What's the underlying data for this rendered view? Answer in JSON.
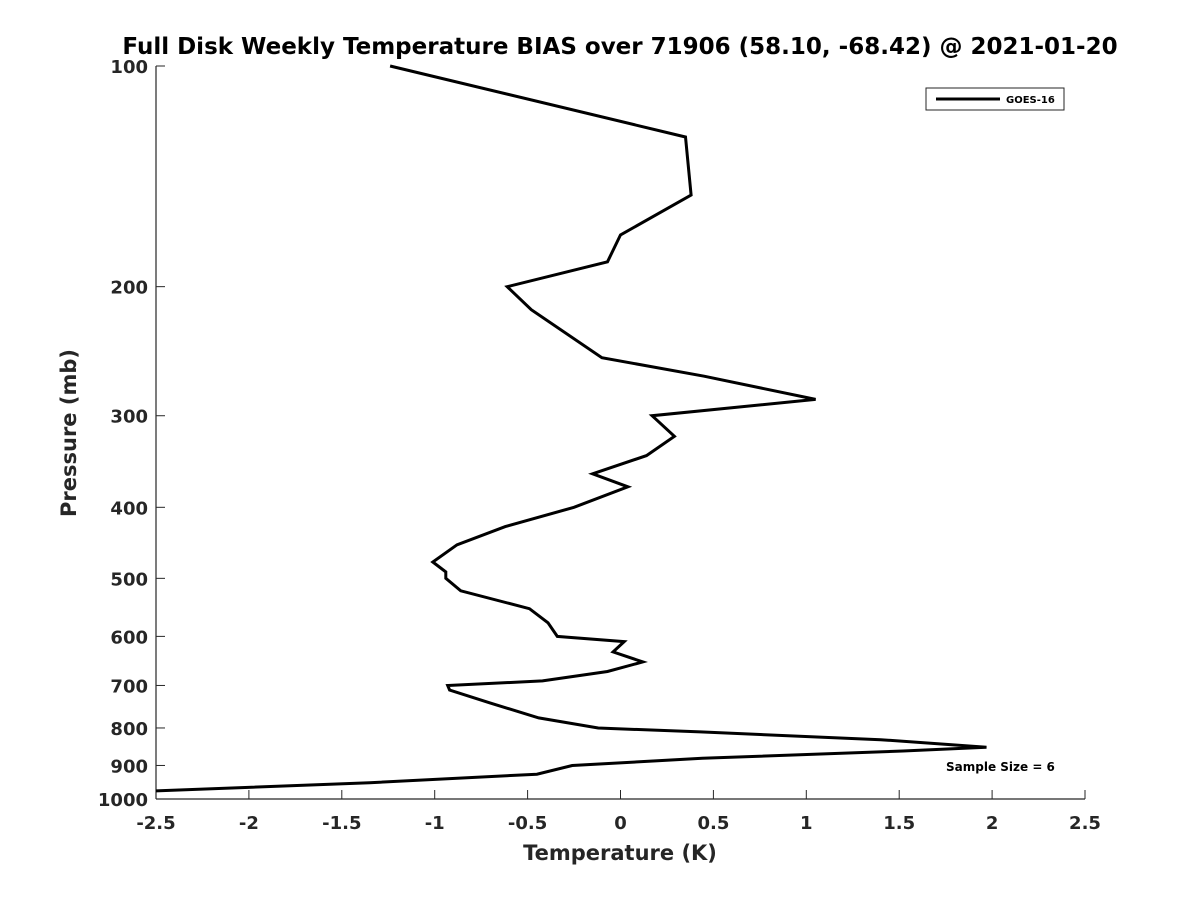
{
  "chart_data": {
    "type": "line",
    "title": "Full Disk Weekly Temperature BIAS over 71906 (58.10, -68.42) @ 2021-01-20",
    "xlabel": "Temperature (K)",
    "ylabel": "Pressure (mb)",
    "xlim": [
      -2.5,
      2.5
    ],
    "ylim": [
      100,
      1000
    ],
    "y_scale": "log",
    "y_reversed": true,
    "x_ticks": [
      "-2.5",
      "-2",
      "-1.5",
      "-1",
      "-0.5",
      "0",
      "0.5",
      "1",
      "1.5",
      "2",
      "2.5"
    ],
    "y_ticks": [
      "100",
      "200",
      "300",
      "400",
      "500",
      "600",
      "700",
      "800",
      "900",
      "1000"
    ],
    "grid": false,
    "legend_position": "top-right",
    "annotation": "Sample Size = 6",
    "series": [
      {
        "name": "GOES-16",
        "color": "#000000",
        "points": [
          {
            "p": 100,
            "t": -1.24
          },
          {
            "p": 125,
            "t": 0.35
          },
          {
            "p": 150,
            "t": 0.38
          },
          {
            "p": 170,
            "t": 0.0
          },
          {
            "p": 185,
            "t": -0.07
          },
          {
            "p": 200,
            "t": -0.61
          },
          {
            "p": 215,
            "t": -0.48
          },
          {
            "p": 250,
            "t": -0.1
          },
          {
            "p": 265,
            "t": 0.45
          },
          {
            "p": 285,
            "t": 1.05
          },
          {
            "p": 300,
            "t": 0.17
          },
          {
            "p": 320,
            "t": 0.29
          },
          {
            "p": 340,
            "t": 0.14
          },
          {
            "p": 360,
            "t": -0.15
          },
          {
            "p": 375,
            "t": 0.04
          },
          {
            "p": 400,
            "t": -0.25
          },
          {
            "p": 425,
            "t": -0.62
          },
          {
            "p": 450,
            "t": -0.88
          },
          {
            "p": 475,
            "t": -1.01
          },
          {
            "p": 490,
            "t": -0.94
          },
          {
            "p": 500,
            "t": -0.94
          },
          {
            "p": 520,
            "t": -0.86
          },
          {
            "p": 550,
            "t": -0.49
          },
          {
            "p": 575,
            "t": -0.39
          },
          {
            "p": 600,
            "t": -0.34
          },
          {
            "p": 610,
            "t": 0.02
          },
          {
            "p": 630,
            "t": -0.04
          },
          {
            "p": 650,
            "t": 0.12
          },
          {
            "p": 670,
            "t": -0.07
          },
          {
            "p": 690,
            "t": -0.42
          },
          {
            "p": 700,
            "t": -0.93
          },
          {
            "p": 710,
            "t": -0.92
          },
          {
            "p": 740,
            "t": -0.7
          },
          {
            "p": 775,
            "t": -0.44
          },
          {
            "p": 800,
            "t": -0.12
          },
          {
            "p": 810,
            "t": 0.43
          },
          {
            "p": 830,
            "t": 1.4
          },
          {
            "p": 850,
            "t": 1.97
          },
          {
            "p": 860,
            "t": 1.52
          },
          {
            "p": 880,
            "t": 0.44
          },
          {
            "p": 900,
            "t": -0.26
          },
          {
            "p": 925,
            "t": -0.45
          },
          {
            "p": 950,
            "t": -1.35
          },
          {
            "p": 975,
            "t": -2.5
          }
        ]
      }
    ]
  }
}
